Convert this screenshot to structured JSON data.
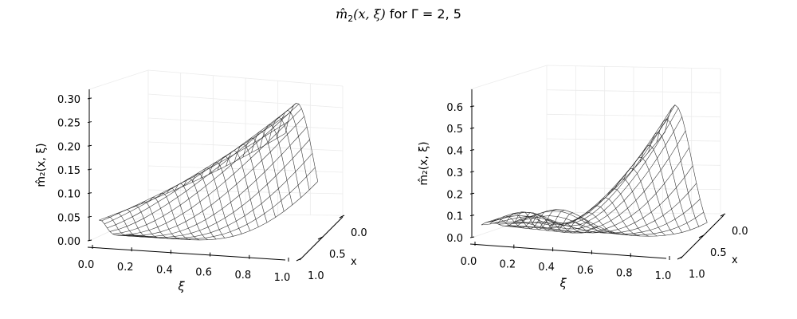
{
  "figure": {
    "title_prefix": "m̂",
    "title_sub": "2",
    "title_args": "(x, ξ)",
    "title_mid": " for Γ = ",
    "title_values": "2, 5"
  },
  "chart_data": [
    {
      "type": "surface",
      "title": "",
      "xlabel": "ξ",
      "ylabel": "x",
      "zlabel": "m̂₂(x, ξ)",
      "xlim": [
        0,
        1
      ],
      "ylim": [
        0,
        1
      ],
      "zlim": [
        0,
        0.32
      ],
      "xticks": [
        "0.0",
        "0.2",
        "0.4",
        "0.6",
        "0.8",
        "1.0"
      ],
      "yticks": [
        "0.0",
        "0.5",
        "1.0"
      ],
      "zticks": [
        "0.00",
        "0.05",
        "0.10",
        "0.15",
        "0.20",
        "0.25",
        "0.30"
      ],
      "grid": true,
      "gamma": 2
    },
    {
      "type": "surface",
      "title": "",
      "xlabel": "ξ",
      "ylabel": "x",
      "zlabel": "m̂₂(x, ξ)",
      "xlim": [
        0,
        1
      ],
      "ylim": [
        0,
        1
      ],
      "zlim": [
        0,
        0.68
      ],
      "xticks": [
        "0.0",
        "0.2",
        "0.4",
        "0.6",
        "0.8",
        "1.0"
      ],
      "yticks": [
        "0.0",
        "0.5",
        "1.0"
      ],
      "zticks": [
        "0.0",
        "0.1",
        "0.2",
        "0.3",
        "0.4",
        "0.5",
        "0.6"
      ],
      "grid": true,
      "gamma": 5
    }
  ]
}
